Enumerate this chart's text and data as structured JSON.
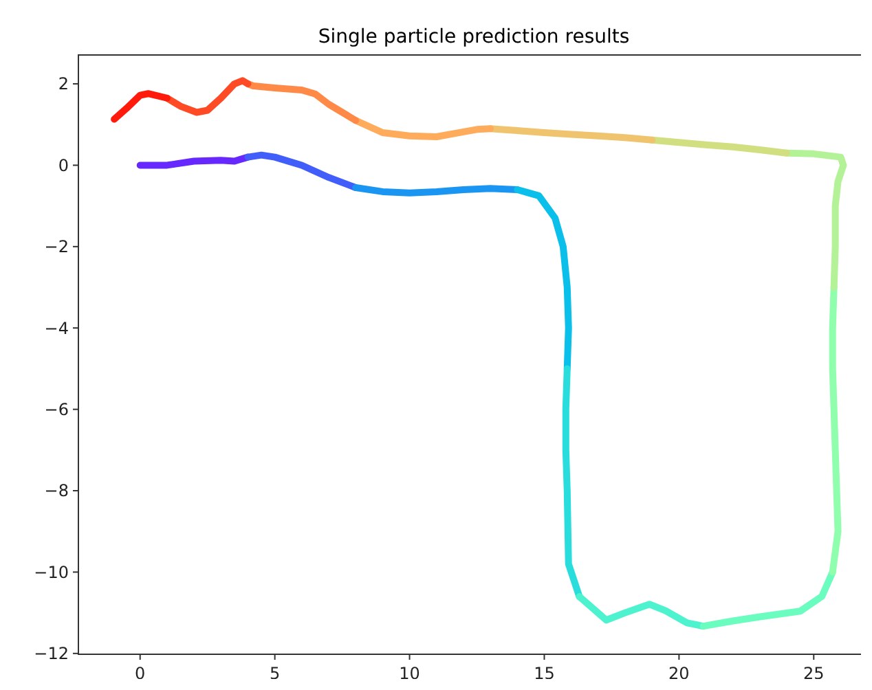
{
  "chart_data": {
    "type": "line",
    "title": "Single particle prediction results",
    "xlim": [
      -2.29,
      27.06
    ],
    "ylim": [
      -12.02,
      2.71
    ],
    "xticks": [
      0,
      5,
      10,
      15,
      20,
      25
    ],
    "yticks": [
      -12,
      -10,
      -8,
      -6,
      -4,
      -2,
      0,
      2
    ],
    "series": [
      {
        "color": "#6628fe",
        "x": [
          0,
          1,
          2,
          3,
          3.5,
          4
        ],
        "values": [
          0,
          0,
          0.1,
          0.12,
          0.1,
          0.2
        ]
      },
      {
        "color": "#425efa",
        "x": [
          4,
          4.5,
          5,
          6,
          7,
          8
        ],
        "values": [
          0.2,
          0.25,
          0.2,
          0,
          -0.3,
          -0.55
        ]
      },
      {
        "color": "#1a96f2",
        "x": [
          8,
          9,
          10,
          11,
          12,
          13,
          14
        ],
        "values": [
          -0.55,
          -0.65,
          -0.68,
          -0.65,
          -0.6,
          -0.57,
          -0.6
        ]
      },
      {
        "color": "#0abfe9",
        "x": [
          14,
          14.8,
          15.4,
          15.7,
          15.85,
          15.9,
          15.85
        ],
        "values": [
          -0.6,
          -0.75,
          -1.3,
          -2,
          -3,
          -4,
          -5
        ]
      },
      {
        "color": "#29dddd",
        "x": [
          15.85,
          15.8,
          15.8,
          15.85,
          15.9,
          16.3
        ],
        "values": [
          -5,
          -6,
          -7,
          -8,
          -9.8,
          -10.6
        ]
      },
      {
        "color": "#4df2ce",
        "x": [
          16.3,
          17.3,
          18,
          18.9,
          19.5,
          20.3,
          20.9
        ],
        "values": [
          -10.6,
          -11.18,
          -11,
          -10.79,
          -10.95,
          -11.25,
          -11.33
        ]
      },
      {
        "color": "#6bfdbf",
        "x": [
          20.9,
          22,
          23,
          24.5,
          25.3,
          25.7
        ],
        "values": [
          -11.33,
          -11.2,
          -11.1,
          -10.96,
          -10.6,
          -10
        ]
      },
      {
        "color": "#8ffead",
        "x": [
          25.7,
          25.9,
          25.85,
          25.8,
          25.75,
          25.7,
          25.7,
          25.75
        ],
        "values": [
          -10,
          -9,
          -8,
          -7,
          -6,
          -5,
          -4,
          -3
        ]
      },
      {
        "color": "#b3f296",
        "x": [
          25.75,
          25.8,
          25.8,
          25.9,
          26.1,
          26,
          25,
          24
        ],
        "values": [
          -3,
          -2,
          -1,
          -0.4,
          0,
          0.2,
          0.28,
          0.3
        ]
      },
      {
        "color": "#d1df80",
        "x": [
          24,
          23,
          22,
          21,
          20,
          19
        ],
        "values": [
          0.3,
          0.38,
          0.45,
          0.5,
          0.56,
          0.62
        ]
      },
      {
        "color": "#f0c46e",
        "x": [
          19,
          18,
          17,
          16,
          15,
          14,
          13
        ],
        "values": [
          0.62,
          0.68,
          0.72,
          0.76,
          0.8,
          0.85,
          0.9
        ]
      },
      {
        "color": "#ffab5c",
        "x": [
          13,
          12.5,
          12,
          11,
          10,
          9,
          8
        ],
        "values": [
          0.9,
          0.88,
          0.82,
          0.7,
          0.72,
          0.8,
          1.1
        ]
      },
      {
        "color": "#ff8a48",
        "x": [
          8,
          7,
          6.5,
          6,
          5,
          4.2,
          4
        ],
        "values": [
          1.1,
          1.5,
          1.75,
          1.85,
          1.9,
          1.95,
          2
        ]
      },
      {
        "color": "#ff4a26",
        "x": [
          4,
          3.8,
          3.5,
          3,
          2.5,
          2.1,
          1.5,
          1
        ],
        "values": [
          2,
          2.08,
          2,
          1.65,
          1.35,
          1.3,
          1.45,
          1.65
        ]
      },
      {
        "color": "#ff1a0c",
        "x": [
          1,
          0.3,
          0,
          -0.5,
          -0.96
        ],
        "values": [
          1.65,
          1.76,
          1.72,
          1.4,
          1.13
        ]
      }
    ]
  }
}
